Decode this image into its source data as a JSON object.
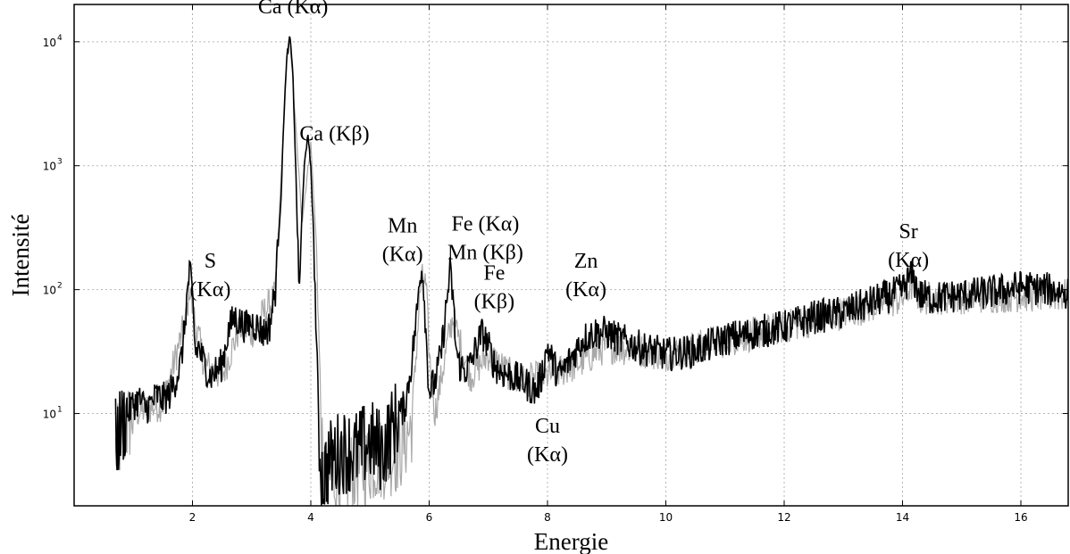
{
  "chart_data": {
    "type": "line",
    "title": "",
    "xlabel": "Energie",
    "ylabel": "Intensité",
    "xlim": [
      0,
      16.8
    ],
    "ylim": [
      1.8,
      20000
    ],
    "yscale": "log",
    "grid": true,
    "x_ticks": [
      2,
      4,
      6,
      8,
      10,
      12,
      14,
      16
    ],
    "y_ticks": [
      {
        "value": 10,
        "base": "10",
        "exp": "1"
      },
      {
        "value": 100,
        "base": "10",
        "exp": "2"
      },
      {
        "value": 1000,
        "base": "10",
        "exp": "3"
      },
      {
        "value": 10000,
        "base": "10",
        "exp": "4"
      }
    ],
    "series": [
      {
        "color": "#000000",
        "x": [
          0.7,
          0.8,
          0.9,
          1.0,
          1.1,
          1.2,
          1.3,
          1.4,
          1.5,
          1.6,
          1.7,
          1.8,
          1.85,
          1.9,
          1.95,
          2.0,
          2.05,
          2.1,
          2.2,
          2.3,
          2.4,
          2.5,
          2.6,
          2.7,
          2.8,
          2.9,
          3.0,
          3.1,
          3.2,
          3.3,
          3.4,
          3.5,
          3.55,
          3.6,
          3.65,
          3.7,
          3.75,
          3.8,
          3.85,
          3.9,
          3.95,
          4.0,
          4.05,
          4.1,
          4.15,
          4.2,
          4.3,
          4.5,
          4.8,
          5.0,
          5.2,
          5.4,
          5.6,
          5.7,
          5.8,
          5.85,
          5.9,
          5.95,
          6.0,
          6.1,
          6.2,
          6.3,
          6.35,
          6.4,
          6.45,
          6.5,
          6.6,
          6.7,
          6.8,
          6.9,
          7.0,
          7.1,
          7.2,
          7.4,
          7.6,
          7.8,
          7.9,
          8.0,
          8.1,
          8.2,
          8.4,
          8.6,
          8.8,
          9.0,
          9.2,
          9.5,
          10.0,
          10.5,
          11.0,
          11.5,
          12.0,
          12.5,
          13.0,
          13.5,
          13.8,
          14.0,
          14.1,
          14.15,
          14.2,
          14.3,
          14.5,
          15.0,
          15.5,
          16.0,
          16.5,
          16.8
        ],
        "values": [
          6,
          8,
          10,
          12,
          13,
          11,
          12,
          14,
          13,
          14,
          18,
          25,
          40,
          80,
          140,
          90,
          30,
          35,
          25,
          20,
          22,
          25,
          45,
          60,
          55,
          50,
          55,
          50,
          45,
          50,
          100,
          600,
          3000,
          8000,
          11000,
          5000,
          800,
          90,
          400,
          1200,
          1700,
          1000,
          250,
          30,
          5,
          3,
          4,
          5,
          5,
          6,
          5,
          8,
          12,
          25,
          70,
          150,
          130,
          40,
          15,
          18,
          30,
          80,
          140,
          90,
          35,
          25,
          22,
          25,
          35,
          45,
          35,
          25,
          22,
          20,
          18,
          15,
          20,
          35,
          25,
          20,
          28,
          40,
          45,
          45,
          40,
          35,
          30,
          32,
          40,
          45,
          50,
          60,
          65,
          80,
          90,
          100,
          120,
          130,
          115,
          90,
          85,
          90,
          95,
          105,
          100,
          95
        ]
      },
      {
        "color": "#a8a8a8",
        "x": [
          0.7,
          1.0,
          1.5,
          1.9,
          1.95,
          2.0,
          2.2,
          2.5,
          2.8,
          3.0,
          3.4,
          3.6,
          3.65,
          3.7,
          3.85,
          4.0,
          4.1,
          4.2,
          4.5,
          5.0,
          5.5,
          5.7,
          5.85,
          5.9,
          5.95,
          6.0,
          6.1,
          6.3,
          6.4,
          6.5,
          6.7,
          7.0,
          7.5,
          8.0,
          8.5,
          9.0,
          10.0,
          12.0,
          14.0,
          14.15,
          14.3,
          16.0,
          16.8
        ],
        "values": [
          5,
          10,
          12,
          60,
          110,
          70,
          25,
          20,
          50,
          45,
          90,
          8000,
          10500,
          4500,
          350,
          1500,
          200,
          3,
          3,
          4,
          5,
          8,
          100,
          130,
          100,
          30,
          10,
          35,
          60,
          40,
          20,
          30,
          18,
          20,
          25,
          35,
          30,
          50,
          85,
          110,
          85,
          90,
          90
        ]
      }
    ],
    "annotations": [
      {
        "id": "s-ka",
        "lines": [
          "S",
          "(Kα)"
        ],
        "x": 2.3,
        "y": 150
      },
      {
        "id": "ca-ka",
        "lines": [
          "Ca (Kα)"
        ],
        "x": 3.7,
        "y": 17000
      },
      {
        "id": "ca-kb",
        "lines": [
          "Ca (Kβ)"
        ],
        "x": 4.4,
        "y": 1600
      },
      {
        "id": "mn-ka",
        "lines": [
          "Mn",
          "(Kα)"
        ],
        "x": 5.55,
        "y": 290
      },
      {
        "id": "fe-ka-mn-kb",
        "lines": [
          "Fe (Kα)",
          "Mn (Kβ)"
        ],
        "x": 6.95,
        "y": 300
      },
      {
        "id": "fe-kb",
        "lines": [
          "Fe",
          "(Kβ)"
        ],
        "x": 7.1,
        "y": 120
      },
      {
        "id": "cu-ka",
        "lines": [
          "Cu",
          "(Kα)"
        ],
        "x": 8.0,
        "y": 7
      },
      {
        "id": "zn-ka",
        "lines": [
          "Zn",
          "(Kα)"
        ],
        "x": 8.65,
        "y": 150
      },
      {
        "id": "sr-ka",
        "lines": [
          "Sr",
          "(Kα)"
        ],
        "x": 14.1,
        "y": 260
      }
    ]
  }
}
